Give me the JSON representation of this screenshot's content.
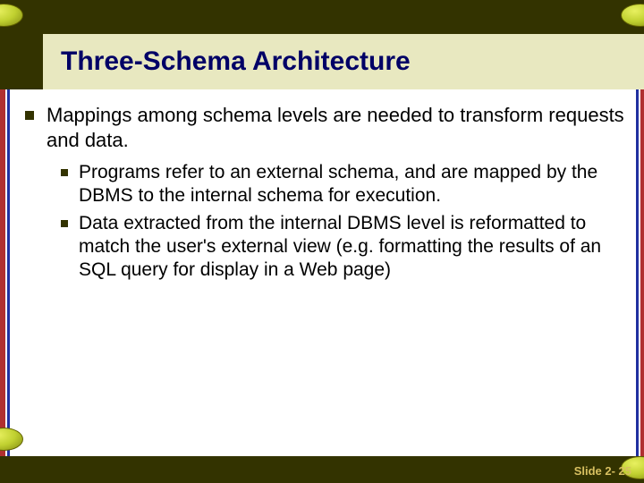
{
  "slide": {
    "title": "Three-Schema Architecture",
    "footer": "Slide 2- 25",
    "bullets": {
      "main": "Mappings among schema levels are needed to transform requests and data.",
      "sub1": "Programs refer to an external schema, and are mapped by the DBMS to the internal schema for execution.",
      "sub2": "Data extracted from the internal DBMS level is reformatted to match the user's external view (e.g. formatting the results of an SQL query for display in a Web page)"
    }
  },
  "colors": {
    "dark_band": "#333300",
    "title_bg": "#e8e8c0",
    "title_fg": "#000066",
    "stripe_red": "#b03030",
    "stripe_blue": "#2030a0",
    "footer_fg": "#d8c060"
  }
}
